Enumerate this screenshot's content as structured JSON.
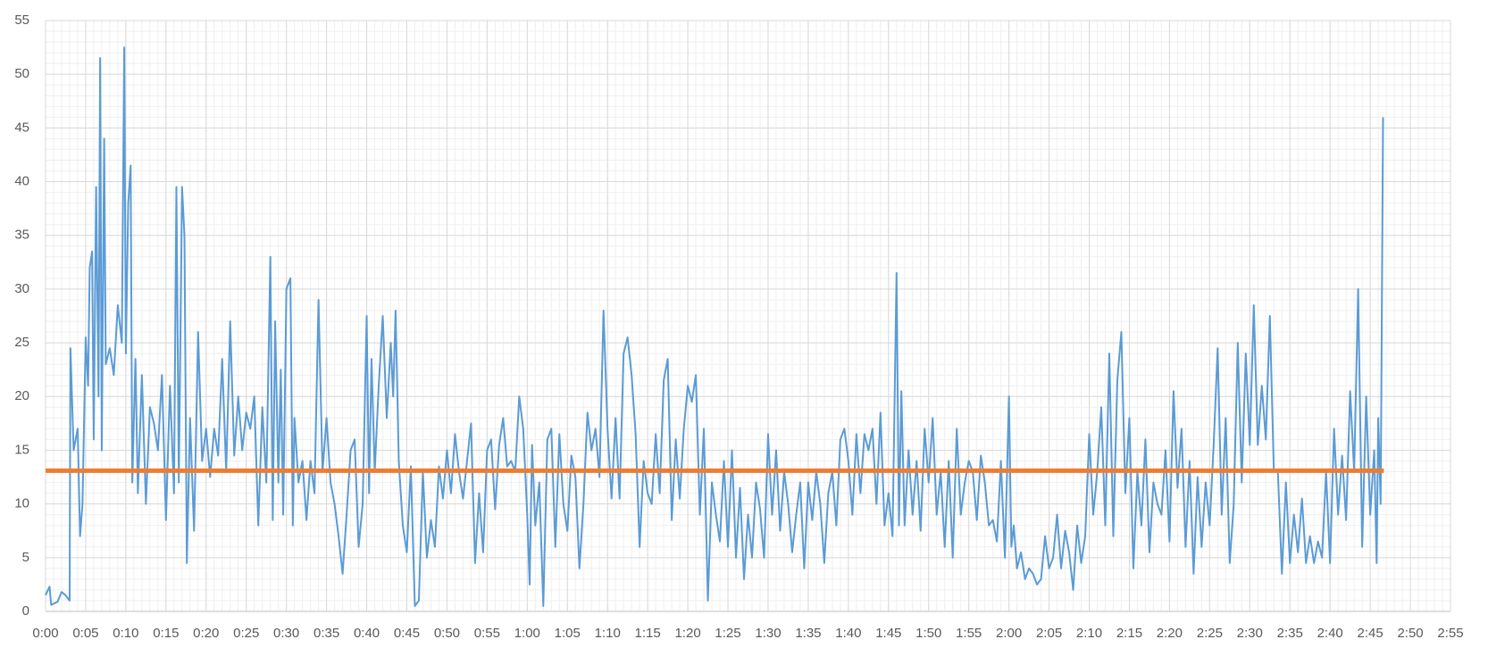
{
  "chart_data": {
    "type": "line",
    "grid": true,
    "minor_grid": true,
    "xlim": [
      0,
      175
    ],
    "ylim": [
      0,
      55
    ],
    "yticks": [
      0,
      5,
      10,
      15,
      20,
      25,
      30,
      35,
      40,
      45,
      50,
      55
    ],
    "xticks": [
      {
        "value": 0,
        "label": "0:00"
      },
      {
        "value": 5,
        "label": "0:05"
      },
      {
        "value": 10,
        "label": "0:10"
      },
      {
        "value": 15,
        "label": "0:15"
      },
      {
        "value": 20,
        "label": "0:20"
      },
      {
        "value": 25,
        "label": "0:25"
      },
      {
        "value": 30,
        "label": "0:30"
      },
      {
        "value": 35,
        "label": "0:35"
      },
      {
        "value": 40,
        "label": "0:40"
      },
      {
        "value": 45,
        "label": "0:45"
      },
      {
        "value": 50,
        "label": "0:50"
      },
      {
        "value": 55,
        "label": "0:55"
      },
      {
        "value": 60,
        "label": "1:00"
      },
      {
        "value": 65,
        "label": "1:05"
      },
      {
        "value": 70,
        "label": "1:10"
      },
      {
        "value": 75,
        "label": "1:15"
      },
      {
        "value": 80,
        "label": "1:20"
      },
      {
        "value": 85,
        "label": "1:25"
      },
      {
        "value": 90,
        "label": "1:30"
      },
      {
        "value": 95,
        "label": "1:35"
      },
      {
        "value": 100,
        "label": "1:40"
      },
      {
        "value": 105,
        "label": "1:45"
      },
      {
        "value": 110,
        "label": "1:50"
      },
      {
        "value": 115,
        "label": "1:55"
      },
      {
        "value": 120,
        "label": "2:00"
      },
      {
        "value": 125,
        "label": "2:05"
      },
      {
        "value": 130,
        "label": "2:10"
      },
      {
        "value": 135,
        "label": "2:15"
      },
      {
        "value": 140,
        "label": "2:20"
      },
      {
        "value": 145,
        "label": "2:25"
      },
      {
        "value": 150,
        "label": "2:30"
      },
      {
        "value": 155,
        "label": "2:35"
      },
      {
        "value": 160,
        "label": "2:40"
      },
      {
        "value": 165,
        "label": "2:45"
      },
      {
        "value": 170,
        "label": "2:50"
      },
      {
        "value": 175,
        "label": "2:55"
      }
    ],
    "series": [
      {
        "color": "#5b9bd5",
        "width": 2,
        "x": [
          0,
          0.5,
          0.7,
          1.5,
          2,
          2.5,
          3,
          3.1,
          3.5,
          4,
          4.3,
          4.6,
          5,
          5.3,
          5.5,
          5.8,
          6,
          6.3,
          6.6,
          6.8,
          7,
          7.3,
          7.5,
          8,
          8.5,
          9,
          9.5,
          9.8,
          10,
          10.3,
          10.6,
          10.8,
          11.2,
          11.5,
          12,
          12.5,
          13,
          13.5,
          14,
          14.5,
          15,
          15.5,
          16,
          16.3,
          16.6,
          17,
          17.3,
          17.6,
          18,
          18.5,
          19,
          19.5,
          20,
          20.5,
          21,
          21.5,
          22,
          22.5,
          23,
          23.5,
          24,
          24.5,
          25,
          25.5,
          26,
          26.5,
          27,
          27.5,
          28,
          28.3,
          28.6,
          29,
          29.3,
          29.6,
          30,
          30.5,
          30.8,
          31,
          31.5,
          32,
          32.5,
          33,
          33.5,
          34,
          34.5,
          35,
          35.5,
          36,
          36.5,
          37,
          37.5,
          38,
          38.5,
          39,
          39.5,
          40,
          40.3,
          40.6,
          41,
          41.5,
          42,
          42.5,
          43,
          43.3,
          43.6,
          44,
          44.5,
          45,
          45.5,
          46,
          46.5,
          47,
          47.5,
          48,
          48.5,
          49,
          49.5,
          50,
          50.5,
          51,
          51.5,
          52,
          52.5,
          53,
          53.5,
          54,
          54.5,
          55,
          55.5,
          56,
          56.5,
          57,
          57.5,
          58,
          58.5,
          59,
          59.5,
          60,
          60.3,
          60.6,
          61,
          61.5,
          62,
          62.5,
          63,
          63.5,
          64,
          64.5,
          65,
          65.5,
          66,
          66.5,
          67,
          67.5,
          68,
          68.5,
          69,
          69.5,
          70,
          70.5,
          71,
          71.5,
          72,
          72.5,
          73,
          73.5,
          74,
          74.5,
          75,
          75.5,
          76,
          76.5,
          77,
          77.5,
          78,
          78.5,
          79,
          79.5,
          80,
          80.5,
          81,
          81.5,
          82,
          82.5,
          83,
          83.5,
          84,
          84.5,
          85,
          85.5,
          86,
          86.5,
          87,
          87.5,
          88,
          88.5,
          89,
          89.5,
          90,
          90.5,
          91,
          91.5,
          92,
          92.5,
          93,
          93.5,
          94,
          94.5,
          95,
          95.5,
          96,
          96.5,
          97,
          97.5,
          98,
          98.5,
          99,
          99.5,
          100,
          100.5,
          101,
          101.5,
          102,
          102.5,
          103,
          103.5,
          104,
          104.5,
          105,
          105.5,
          106,
          106.3,
          106.6,
          107,
          107.5,
          108,
          108.5,
          109,
          109.5,
          110,
          110.5,
          111,
          111.5,
          112,
          112.5,
          113,
          113.5,
          114,
          114.5,
          115,
          115.5,
          116,
          116.5,
          117,
          117.5,
          118,
          118.5,
          119,
          119.5,
          120,
          120.3,
          120.6,
          121,
          121.5,
          122,
          122.5,
          123,
          123.5,
          124,
          124.5,
          125,
          125.5,
          126,
          126.5,
          127,
          127.5,
          128,
          128.5,
          129,
          129.5,
          130,
          130.5,
          131,
          131.5,
          132,
          132.5,
          133,
          133.5,
          134,
          134.5,
          135,
          135.5,
          136,
          136.5,
          137,
          137.5,
          138,
          138.5,
          139,
          139.5,
          140,
          140.5,
          141,
          141.5,
          142,
          142.5,
          143,
          143.5,
          144,
          144.5,
          145,
          145.5,
          146,
          146.5,
          147,
          147.5,
          148,
          148.5,
          149,
          149.5,
          150,
          150.5,
          151,
          151.5,
          152,
          152.5,
          153,
          153.5,
          154,
          154.5,
          155,
          155.5,
          156,
          156.5,
          157,
          157.5,
          158,
          158.5,
          159,
          159.5,
          160,
          160.5,
          161,
          161.5,
          162,
          162.5,
          163,
          163.5,
          164,
          164.5,
          165,
          165.5,
          165.8,
          166,
          166.3,
          166.6
        ],
        "values": [
          1.5,
          2.3,
          0.6,
          0.9,
          1.8,
          1.5,
          1.0,
          24.5,
          15,
          17,
          7,
          10,
          25.5,
          21,
          32,
          33.5,
          16,
          39.5,
          20,
          51.5,
          15,
          44,
          23,
          24.5,
          22,
          28.5,
          25,
          52.5,
          24,
          38,
          41.5,
          12,
          23.5,
          11,
          22,
          10,
          19,
          17.5,
          15,
          22,
          8.5,
          21,
          11,
          39.5,
          12,
          39.5,
          35,
          4.5,
          18,
          7.5,
          26,
          14,
          17,
          12.5,
          17,
          14.5,
          23.5,
          13,
          27,
          14.5,
          20,
          15,
          18.5,
          17,
          20,
          8,
          19,
          12,
          33,
          8.5,
          27,
          12,
          22.5,
          9,
          30,
          31,
          8,
          18,
          12,
          14,
          8.5,
          14,
          11,
          29,
          13,
          18,
          12,
          10,
          7,
          3.5,
          9,
          15,
          16,
          6,
          10,
          27.5,
          11,
          23.5,
          13,
          21,
          27.5,
          18,
          25,
          20,
          28,
          14,
          8,
          5.5,
          13.5,
          0.5,
          1,
          13,
          5,
          8.5,
          6,
          13.5,
          10.5,
          15,
          11,
          16.5,
          13,
          10.5,
          14,
          17.5,
          4.5,
          11,
          5.5,
          15,
          16,
          9.5,
          15.5,
          18,
          13.5,
          14,
          13,
          20,
          17,
          9,
          2.5,
          15.5,
          8,
          12,
          0.5,
          16,
          17,
          6,
          16.5,
          10,
          7.5,
          14.5,
          12.5,
          4,
          10,
          18.5,
          15,
          17,
          12.5,
          28,
          17,
          10.5,
          18,
          10.5,
          24,
          25.5,
          22,
          16.5,
          6,
          14,
          11,
          10,
          16.5,
          11,
          21.5,
          23.5,
          8.5,
          16,
          10.5,
          17,
          21,
          19.5,
          22,
          9,
          17,
          1,
          12,
          9,
          6.5,
          14,
          6,
          15,
          5,
          11.5,
          3,
          9,
          5,
          12,
          9.5,
          5,
          16.5,
          9,
          15,
          7.5,
          13,
          10,
          5.5,
          9,
          12,
          4,
          12,
          8.5,
          13,
          10,
          4.5,
          11,
          13,
          8,
          16,
          17,
          14,
          9,
          16.5,
          11,
          16.5,
          15,
          17,
          10,
          18.5,
          8,
          11,
          7,
          31.5,
          8,
          20.5,
          8,
          15,
          9,
          14,
          7.5,
          17,
          12,
          18,
          9,
          13,
          6,
          14,
          5,
          17,
          9,
          12,
          14,
          13,
          8.5,
          14.5,
          12,
          8,
          8.5,
          6.5,
          14,
          5,
          20,
          6,
          8,
          4,
          5.5,
          3,
          4,
          3.5,
          2.5,
          3,
          7,
          4,
          5,
          9,
          4,
          7.5,
          5.5,
          2,
          8,
          4.5,
          7,
          16.5,
          9,
          13,
          19,
          8,
          24,
          7,
          21.5,
          26,
          11,
          18,
          4,
          13,
          8,
          16,
          5.5,
          12,
          10,
          9,
          15,
          6.5,
          20.5,
          11.5,
          17,
          6,
          14,
          3.5,
          12.5,
          6,
          12,
          8,
          15.5,
          24.5,
          9,
          18,
          4.5,
          10,
          25,
          12,
          24,
          15.5,
          28.5,
          15.5,
          21,
          16,
          27.5,
          13,
          13,
          3.5,
          12,
          4.5,
          9,
          5.5,
          10.5,
          4.5,
          7,
          4.5,
          6.5,
          5,
          13,
          4.5,
          17,
          9,
          14.5,
          8.5,
          20.5,
          13,
          30,
          6,
          20,
          9,
          15,
          4.5,
          18,
          10,
          46
        ]
      },
      {
        "color": "#ed7d31",
        "width": 5,
        "x": [
          0,
          166.7
        ],
        "values": [
          13.1,
          13.1
        ]
      }
    ]
  }
}
